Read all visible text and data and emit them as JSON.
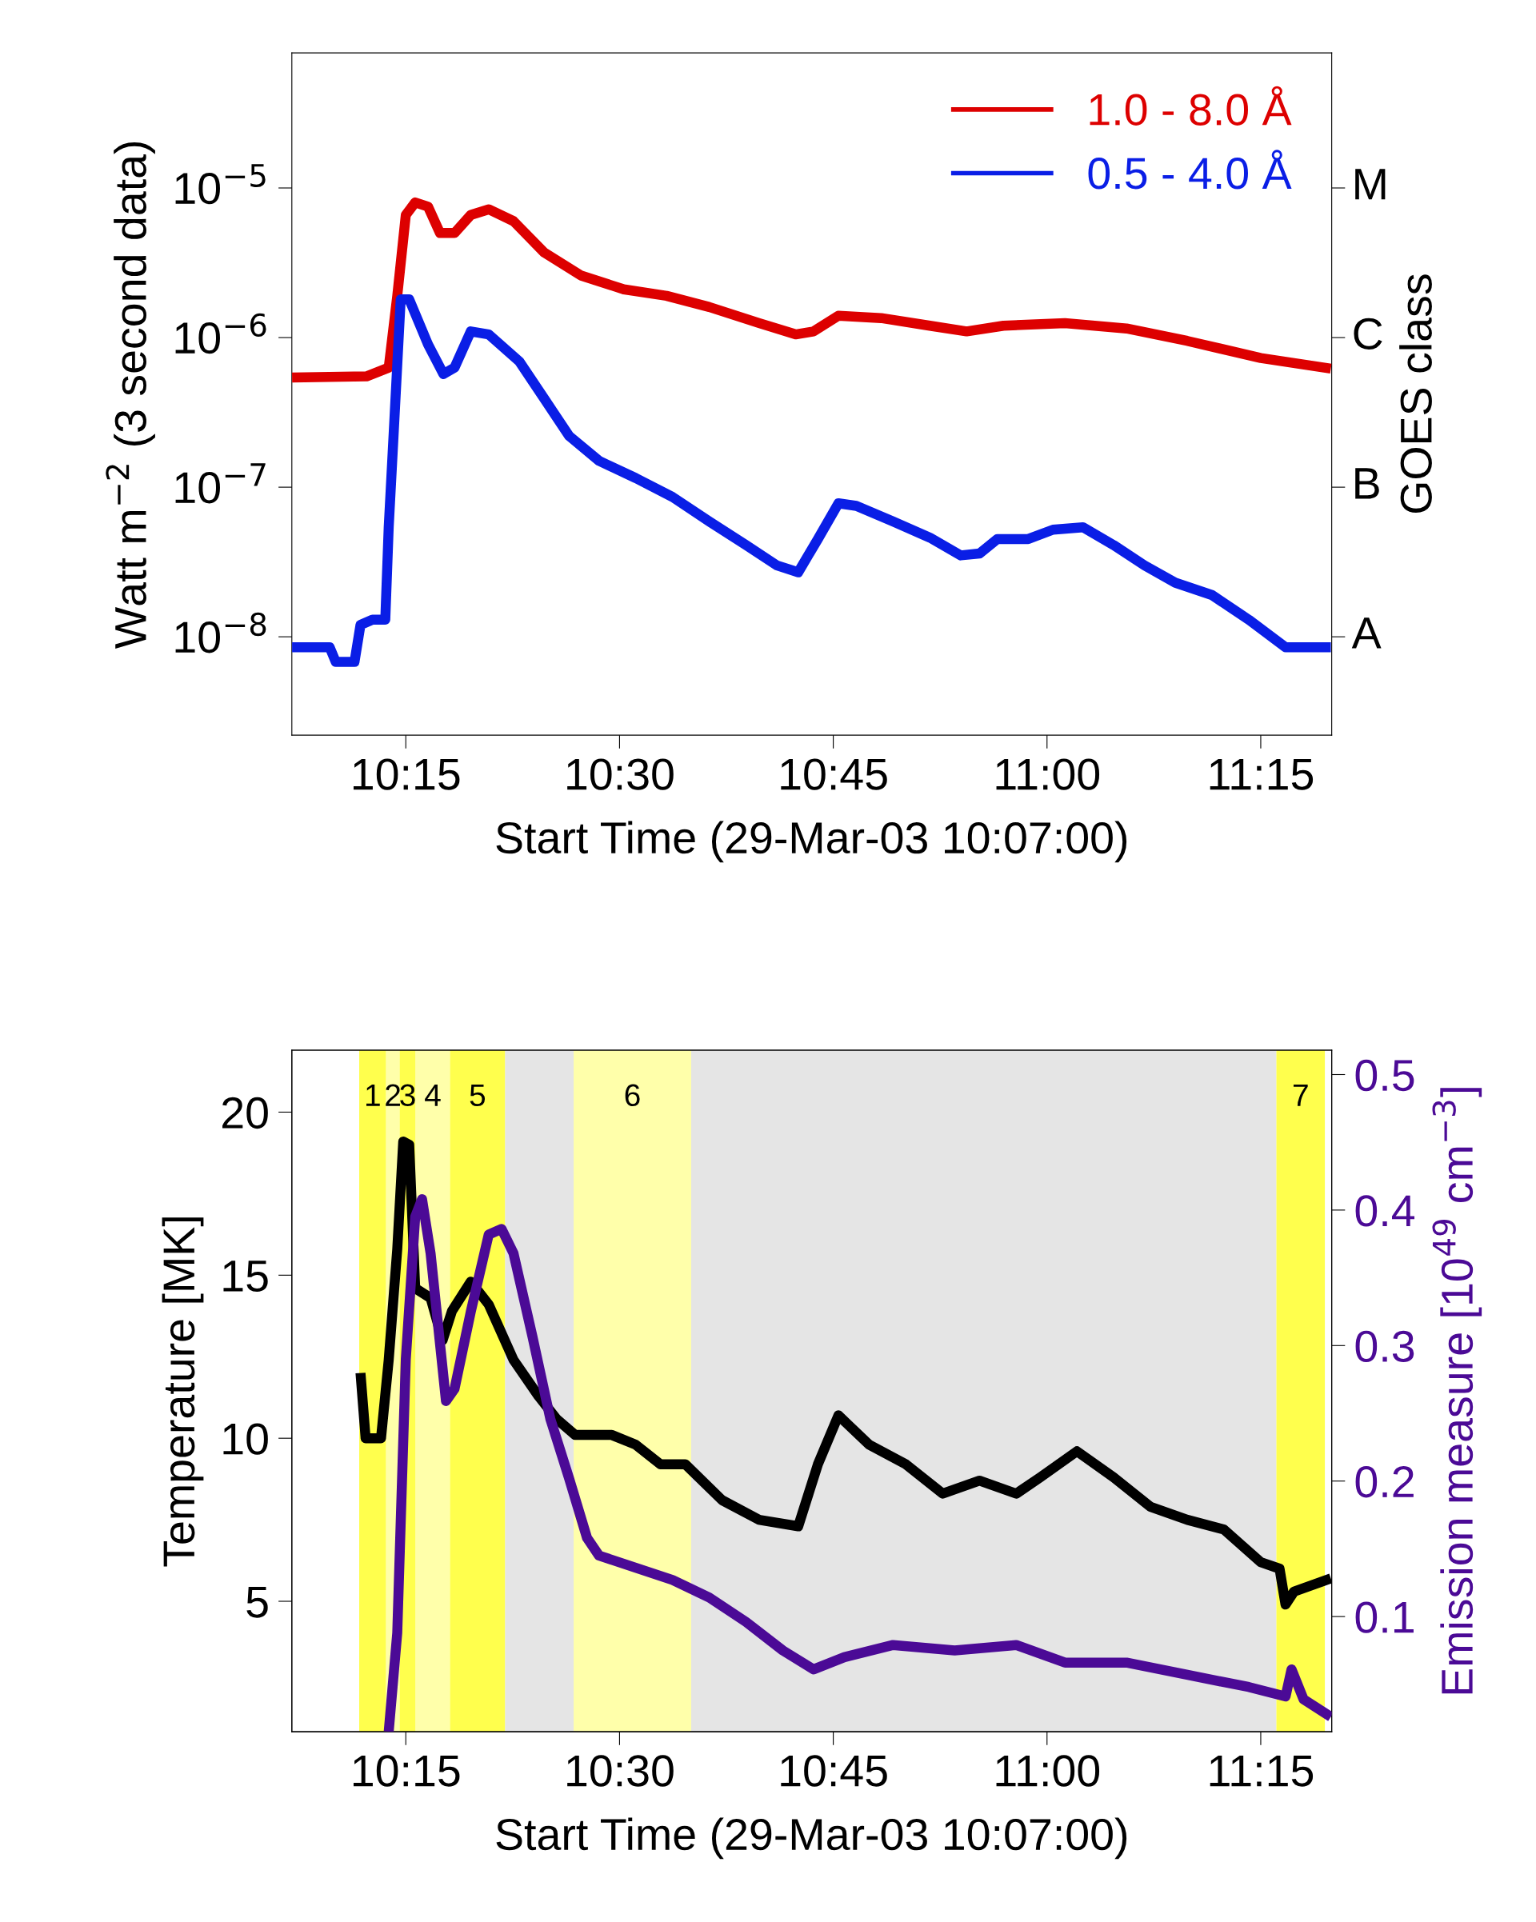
{
  "chart_data": [
    {
      "type": "line",
      "xlabel": "Start Time (29-Mar-03 10:07:00)",
      "ylabel": "Watt m$^{−2}$ (3 second data)",
      "y2label": "GOES class",
      "log": "y",
      "legend": "top right",
      "grid": false,
      "xlim": [
        10.1167,
        11.333
      ],
      "xticks": [
        {
          "value": 10.25,
          "label": "10:15"
        },
        {
          "value": 10.5,
          "label": "10:30"
        },
        {
          "value": 10.75,
          "label": "10:45"
        },
        {
          "value": 11.0,
          "label": "11:00"
        },
        {
          "value": 11.25,
          "label": "11:15"
        }
      ],
      "ylim": [
        2.2e-09,
        8e-05
      ],
      "yticks": [
        {
          "value": 1e-08,
          "label": "10$^{−8}$"
        },
        {
          "value": 1e-07,
          "label": "10$^{−7}$"
        },
        {
          "value": 1e-06,
          "label": "10$^{−6}$"
        },
        {
          "value": 1e-05,
          "label": "10$^{−5}$"
        }
      ],
      "annotations": [
        "A",
        "B",
        "C",
        "M"
      ],
      "series": [
        {
          "name": "1.0 - 8.0 Å",
          "color": "#dd0000",
          "x": [
            10.117,
            10.204,
            10.23,
            10.24,
            10.25,
            10.261,
            10.276,
            10.29,
            10.307,
            10.326,
            10.347,
            10.376,
            10.412,
            10.455,
            10.505,
            10.555,
            10.605,
            10.663,
            10.706,
            10.727,
            10.756,
            10.806,
            10.863,
            10.906,
            10.949,
            11.021,
            11.093,
            11.164,
            11.25,
            11.332
          ],
          "values": [
            5.4e-07,
            5.5e-07,
            6.3e-07,
            1.9e-06,
            6.6e-06,
            8e-06,
            7.5e-06,
            5e-06,
            5e-06,
            6.6e-06,
            7.2e-06,
            6e-06,
            3.7e-06,
            2.6e-06,
            2.1e-06,
            1.9e-06,
            1.6e-06,
            1.25e-06,
            1.05e-06,
            1.1e-06,
            1.4e-06,
            1.35e-06,
            1.2e-06,
            1.1e-06,
            1.2e-06,
            1.25e-06,
            1.15e-06,
            9.5e-07,
            7.3e-07,
            6.2e-07
          ]
        },
        {
          "name": "0.5 - 4.0 Å",
          "color": "#0a1ee6",
          "x": [
            10.117,
            10.161,
            10.168,
            10.19,
            10.197,
            10.211,
            10.226,
            10.23,
            10.236,
            10.244,
            10.254,
            10.276,
            10.294,
            10.307,
            10.326,
            10.347,
            10.383,
            10.412,
            10.441,
            10.476,
            10.519,
            10.562,
            10.605,
            10.648,
            10.684,
            10.709,
            10.732,
            10.756,
            10.777,
            10.82,
            10.863,
            10.899,
            10.921,
            10.942,
            10.978,
            11.007,
            11.042,
            11.078,
            11.114,
            11.15,
            11.193,
            11.236,
            11.279,
            11.332
          ],
          "values": [
            8.5e-09,
            8.5e-09,
            6.8e-09,
            6.8e-09,
            1.2e-08,
            1.3e-08,
            1.3e-08,
            5.4e-08,
            2.4e-07,
            1.8e-06,
            1.8e-06,
            9e-07,
            5.7e-07,
            6.3e-07,
            1.1e-06,
            1.05e-06,
            6.9e-07,
            3.9e-07,
            2.2e-07,
            1.5e-07,
            1.15e-07,
            8.6e-08,
            5.9e-08,
            4.1e-08,
            3e-08,
            2.7e-08,
            4.5e-08,
            7.8e-08,
            7.5e-08,
            5.9e-08,
            4.6e-08,
            3.5e-08,
            3.6e-08,
            4.5e-08,
            4.5e-08,
            5.2e-08,
            5.4e-08,
            4.1e-08,
            3e-08,
            2.3e-08,
            1.9e-08,
            1.3e-08,
            8.5e-09,
            8.5e-09
          ]
        }
      ]
    },
    {
      "type": "line",
      "xlabel": "Start Time (29-Mar-03 10:07:00)",
      "ylabel": "Temperature [MK]",
      "y2label": "Emission measure [10$^{49}$ cm$^{−3}$]",
      "grid": false,
      "xlim": [
        10.1167,
        11.333
      ],
      "xticks": [
        {
          "value": 10.25,
          "label": "10:15"
        },
        {
          "value": 10.5,
          "label": "10:30"
        },
        {
          "value": 10.75,
          "label": "10:45"
        },
        {
          "value": 11.0,
          "label": "11:00"
        },
        {
          "value": 11.25,
          "label": "11:15"
        }
      ],
      "ylim": [
        1,
        21.9
      ],
      "yticks": [
        5,
        10,
        15,
        20
      ],
      "y2lim": [
        0.015,
        0.518
      ],
      "y2ticks": [
        0.1,
        0.2,
        0.3,
        0.4,
        0.5
      ],
      "bands": [
        {
          "axis": "x",
          "from": 10.366,
          "to": 11.2683,
          "color": "#e5e5e5"
        },
        {
          "axis": "x",
          "from": 10.1955,
          "to": 10.227,
          "label": "1",
          "color": "#ffff4d"
        },
        {
          "axis": "x",
          "from": 10.227,
          "to": 10.2428,
          "label": "2",
          "color": "#ffffaa"
        },
        {
          "axis": "x",
          "from": 10.2428,
          "to": 10.2615,
          "label": "3",
          "color": "#ffff4d"
        },
        {
          "axis": "x",
          "from": 10.2615,
          "to": 10.3017,
          "label": "4",
          "color": "#ffffaa"
        },
        {
          "axis": "x",
          "from": 10.3017,
          "to": 10.366,
          "label": "5",
          "color": "#ffff4d"
        },
        {
          "axis": "x",
          "from": 10.4463,
          "to": 10.5838,
          "label": "6",
          "color": "#ffffaa"
        },
        {
          "axis": "x",
          "from": 11.2683,
          "to": 11.325,
          "label": "7",
          "color": "#ffff4d"
        }
      ],
      "series": [
        {
          "color": "#000000",
          "x": [
            10.197,
            10.203,
            10.221,
            10.23,
            10.24,
            10.247,
            10.254,
            10.261,
            10.279,
            10.293,
            10.304,
            10.326,
            10.347,
            10.376,
            10.405,
            10.426,
            10.448,
            10.491,
            10.519,
            10.548,
            10.577,
            10.62,
            10.663,
            10.709,
            10.732,
            10.756,
            10.792,
            10.835,
            10.878,
            10.921,
            10.964,
            10.992,
            11.035,
            11.078,
            11.121,
            11.164,
            11.207,
            11.25,
            11.272,
            11.279,
            11.289,
            11.332
          ],
          "values": [
            12.0,
            10.0,
            10.0,
            12.4,
            15.8,
            19.1,
            19.0,
            14.6,
            14.3,
            13.0,
            13.9,
            14.8,
            14.1,
            12.4,
            11.3,
            10.6,
            10.1,
            10.1,
            9.8,
            9.2,
            9.2,
            8.1,
            7.5,
            7.3,
            9.2,
            10.7,
            9.8,
            9.2,
            8.3,
            8.7,
            8.3,
            8.8,
            9.6,
            8.8,
            7.9,
            7.5,
            7.2,
            6.2,
            6.0,
            4.9,
            5.3,
            5.7
          ]
        },
        {
          "color": "#4b0a96",
          "axis": "y2",
          "x": [
            10.23,
            10.24,
            10.25,
            10.261,
            10.269,
            10.279,
            10.297,
            10.307,
            10.326,
            10.347,
            10.362,
            10.376,
            10.398,
            10.419,
            10.441,
            10.462,
            10.476,
            10.519,
            10.562,
            10.605,
            10.648,
            10.691,
            10.727,
            10.763,
            10.82,
            10.892,
            10.964,
            11.021,
            11.093,
            11.164,
            11.236,
            11.279,
            11.286,
            11.3,
            11.332
          ],
          "values": [
            0.015,
            0.088,
            0.29,
            0.395,
            0.408,
            0.368,
            0.259,
            0.268,
            0.325,
            0.382,
            0.386,
            0.368,
            0.307,
            0.246,
            0.202,
            0.158,
            0.145,
            0.136,
            0.127,
            0.114,
            0.096,
            0.075,
            0.061,
            0.07,
            0.079,
            0.075,
            0.079,
            0.066,
            0.066,
            0.057,
            0.048,
            0.041,
            0.061,
            0.039,
            0.026
          ]
        }
      ]
    }
  ]
}
